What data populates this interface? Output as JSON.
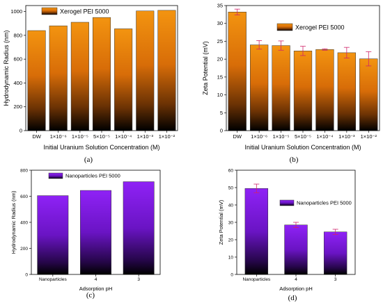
{
  "panels": {
    "a": {
      "label": "(a)",
      "legend": "Xerogel PEI 5000",
      "ylabel": "Hydrodynamic Radius (nm)",
      "xlabel": "Initial Uranium Solution Concentration (M)"
    },
    "b": {
      "label": "(b)",
      "legend": "Xerogel PEI 5000",
      "ylabel": "Zeta Potential (mV)",
      "xlabel": "Initial Uranium Solution Concentration (M)"
    },
    "c": {
      "label": "(c)",
      "legend": "Nanoparticles PEI 5000",
      "ylabel": "Hydrodynamic Radius (nm)",
      "xlabel": "Adsorption pH"
    },
    "d": {
      "label": "(d)",
      "legend": "Nanoparticles PEI 5000",
      "ylabel": "Zeta Potential (mV)",
      "xlabel": "Adsorption pH"
    }
  },
  "colors": {
    "orange_top": "#f08a10",
    "orange_bottom": "#000000",
    "purple_top": "#8a1cf2",
    "purple_bottom": "#000000",
    "error": "#d0246a"
  },
  "chart_data": [
    {
      "id": "a",
      "type": "bar",
      "title": "",
      "xlabel": "Initial Uranium Solution Concentration (M)",
      "ylabel": "Hydrodynamic Radius (nm)",
      "categories": [
        "DW",
        "1×10⁻⁶",
        "1×10⁻⁵",
        "5×10⁻⁵",
        "1×10⁻⁴",
        "1×10⁻³",
        "1×10⁻²"
      ],
      "series": [
        {
          "name": "Xerogel PEI 5000",
          "values": [
            840,
            880,
            910,
            950,
            855,
            1005,
            1010
          ]
        }
      ],
      "ylim": [
        0,
        1050
      ],
      "yticks": [
        0,
        200,
        400,
        600,
        800,
        1000
      ],
      "legend": "top-left",
      "grid": false
    },
    {
      "id": "b",
      "type": "bar",
      "title": "",
      "xlabel": "Initial Uranium Solution Concentration (M)",
      "ylabel": "Zeta Potential (mV)",
      "categories": [
        "DW",
        "1×10⁻⁶",
        "1×10⁻⁵",
        "5×10⁻⁵",
        "1×10⁻⁴",
        "1×10⁻³",
        "1×10⁻²"
      ],
      "series": [
        {
          "name": "Xerogel PEI 5000",
          "values": [
            33.2,
            24.0,
            23.8,
            22.3,
            22.7,
            21.8,
            20.1
          ],
          "errors": [
            0.8,
            1.2,
            1.3,
            1.3,
            0.2,
            1.5,
            2.0
          ]
        }
      ],
      "ylim": [
        0,
        35
      ],
      "yticks": [
        0,
        5,
        10,
        15,
        20,
        25,
        30,
        35
      ],
      "legend": "top-right",
      "grid": false
    },
    {
      "id": "c",
      "type": "bar",
      "title": "",
      "xlabel": "Adsorption pH",
      "ylabel": "Hydrodynamic Radius (nm)",
      "categories": [
        "Nanoparticles",
        "4",
        "3"
      ],
      "series": [
        {
          "name": "Nanoparticles PEI 5000",
          "values": [
            605,
            645,
            712
          ]
        }
      ],
      "ylim": [
        0,
        800
      ],
      "yticks": [
        0,
        200,
        400,
        600,
        800
      ],
      "legend": "top-left",
      "grid": false
    },
    {
      "id": "d",
      "type": "bar",
      "title": "",
      "xlabel": "Adsorption pH",
      "ylabel": "Zeta Potential (mV)",
      "categories": [
        "Nanoparticles",
        "4",
        "3"
      ],
      "series": [
        {
          "name": "Nanoparticles PEI 5000",
          "values": [
            49.5,
            28.5,
            24.5
          ],
          "errors": [
            2.5,
            1.5,
            1.5
          ]
        }
      ],
      "ylim": [
        0,
        60
      ],
      "yticks": [
        0,
        10,
        20,
        30,
        40,
        50,
        60
      ],
      "legend": "top-right",
      "grid": false
    }
  ]
}
